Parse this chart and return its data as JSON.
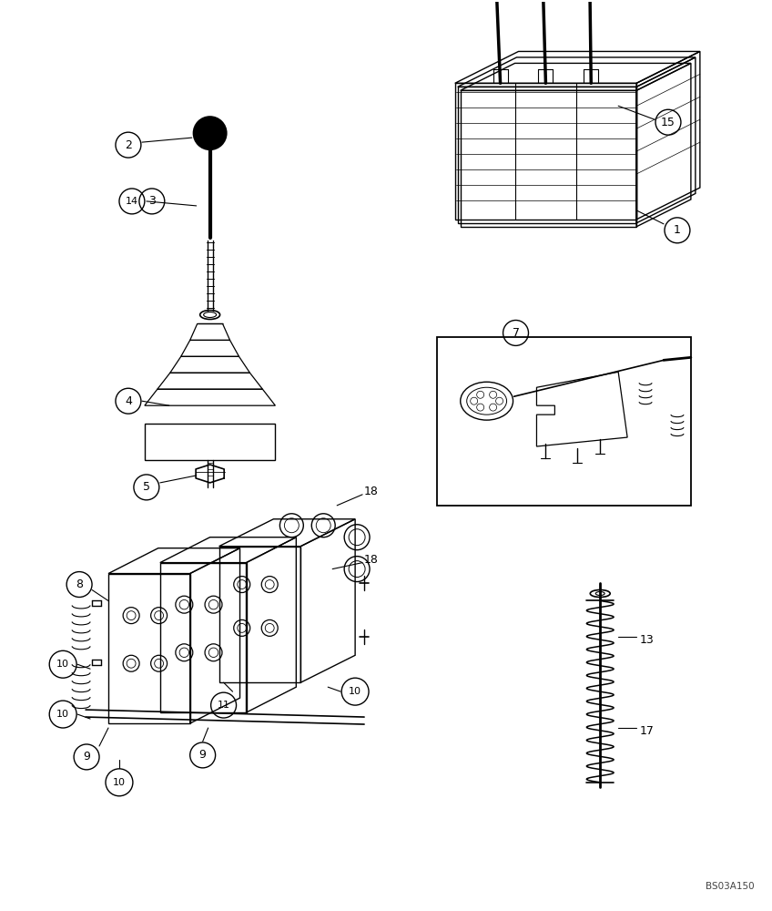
{
  "bg_color": "#ffffff",
  "line_color": "#000000",
  "watermark": "BS03A150",
  "figsize": [
    8.48,
    10.0
  ],
  "dpi": 100
}
